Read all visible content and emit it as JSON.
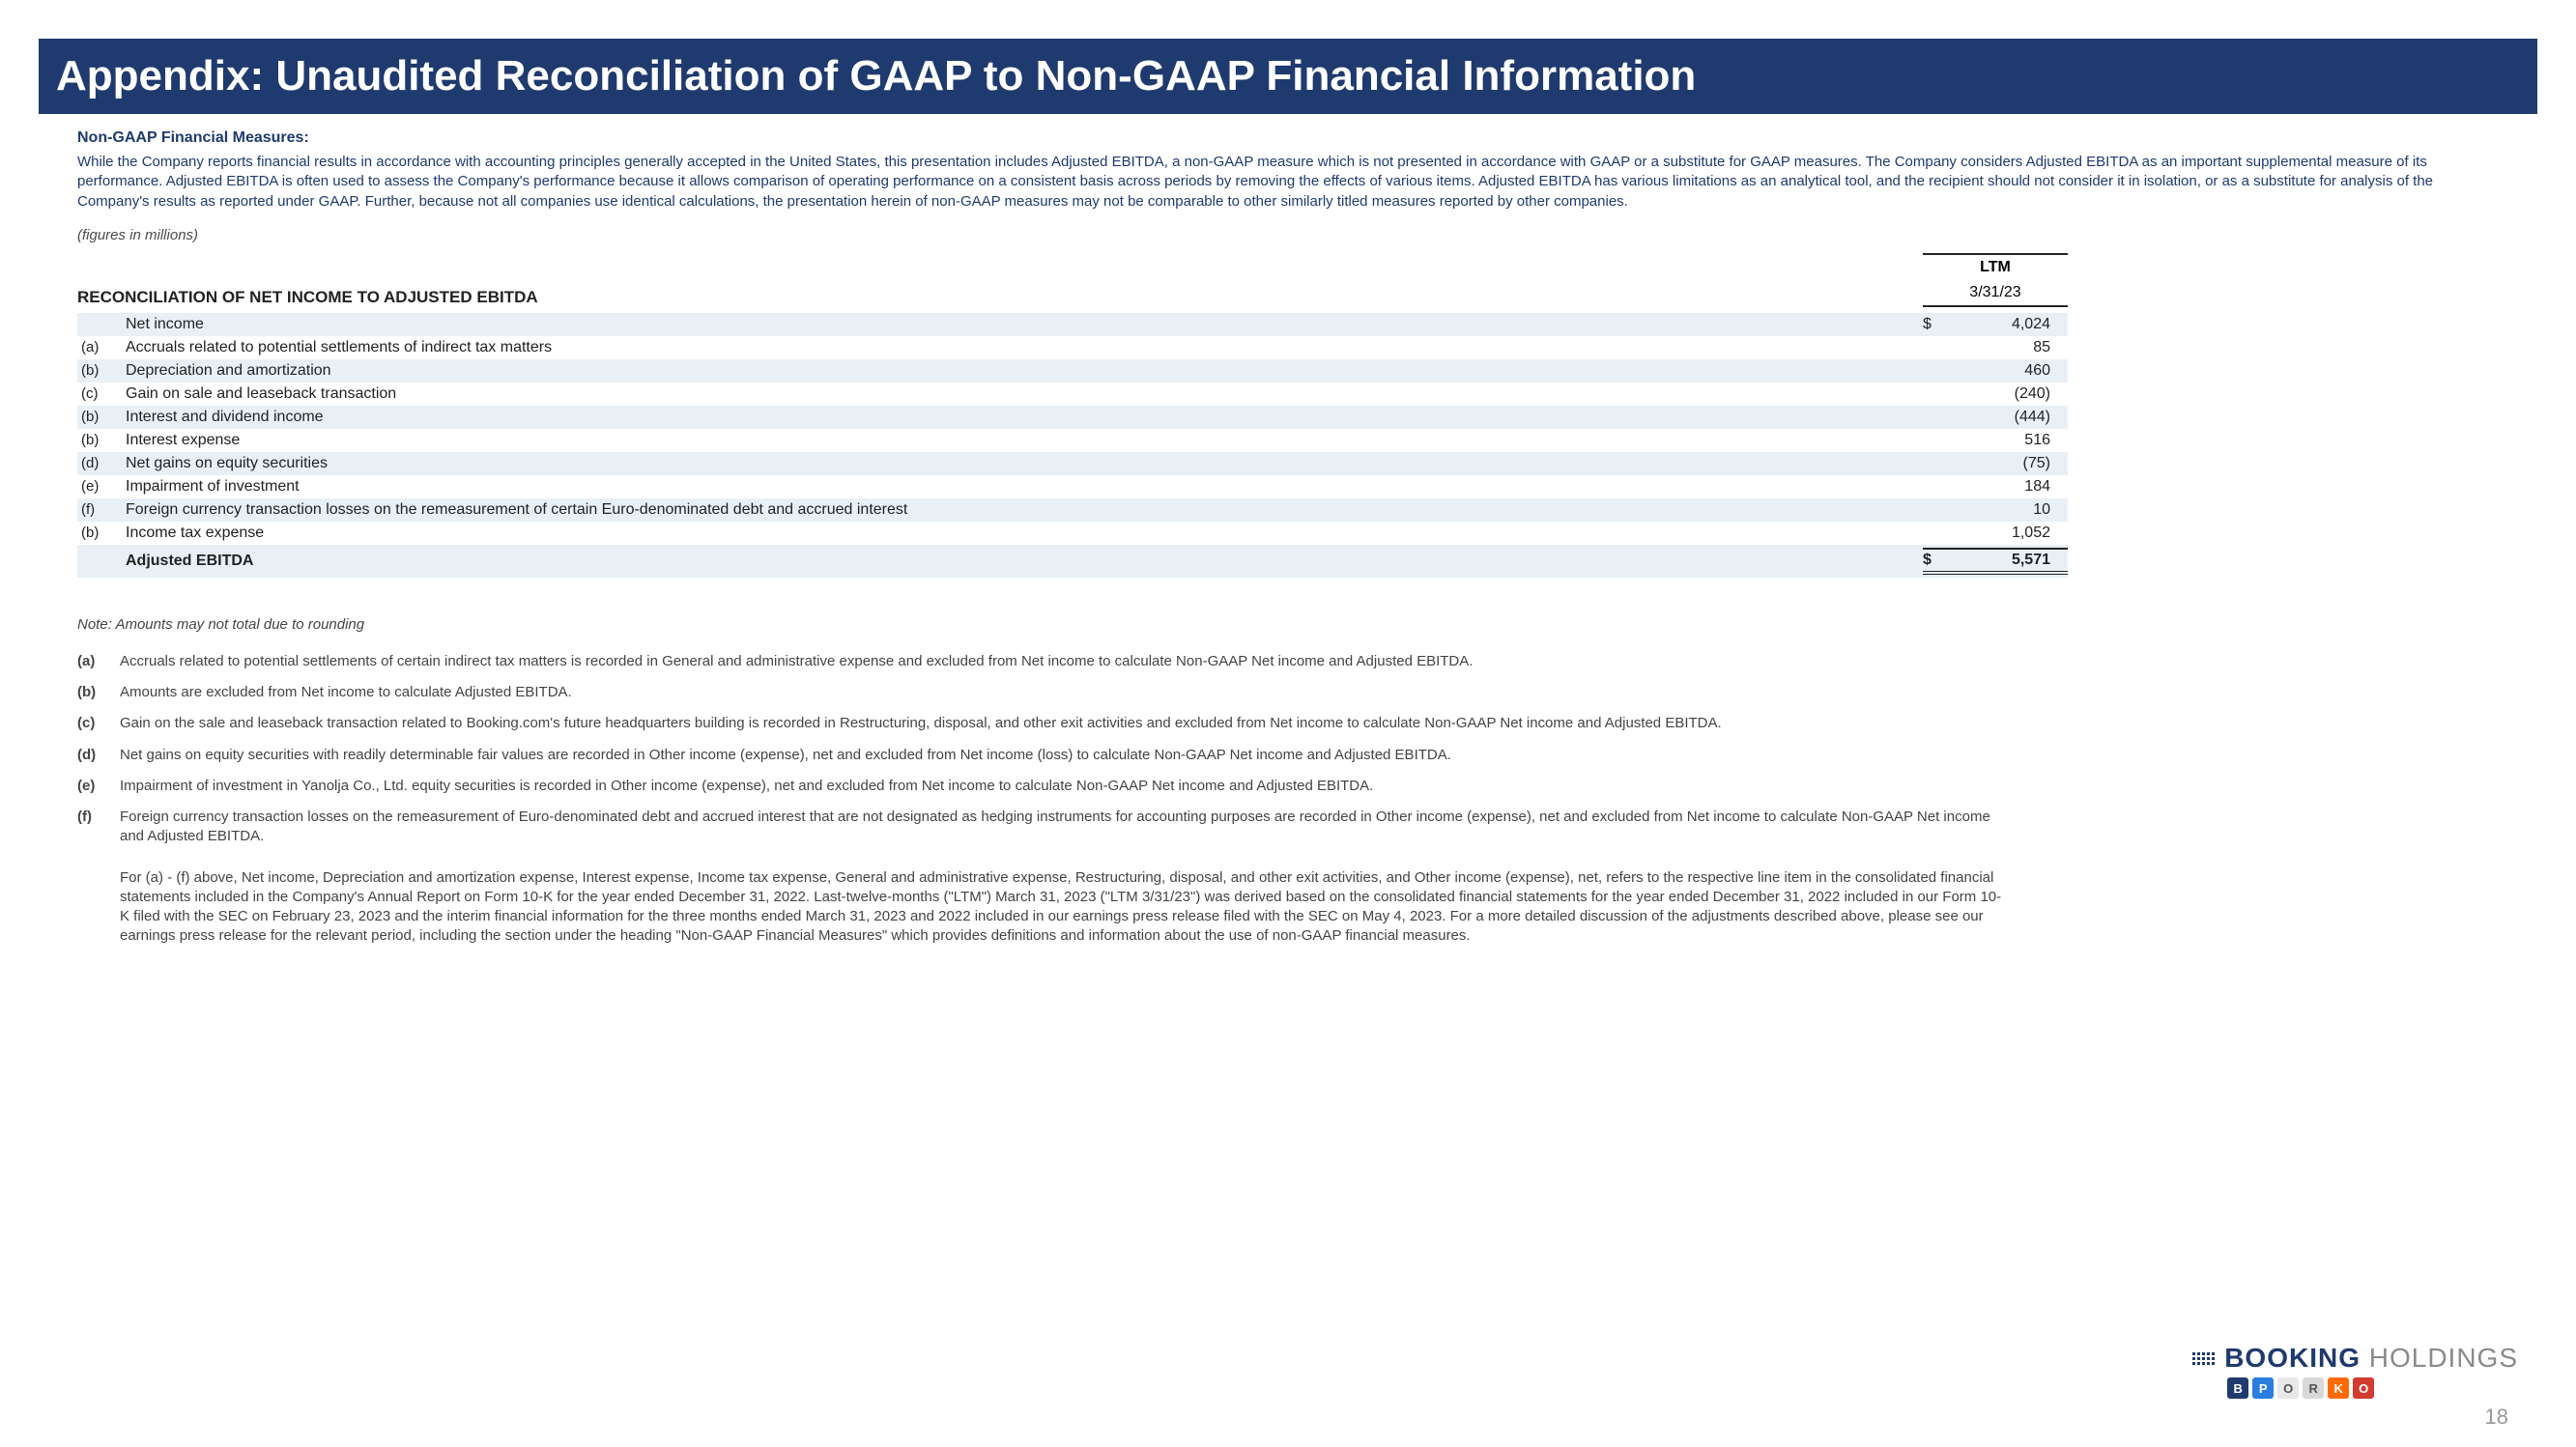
{
  "title": "Appendix: Unaudited Reconciliation of GAAP to Non-GAAP Financial Information",
  "subheading": "Non-GAAP Financial Measures:",
  "paragraph": "While the Company reports financial results in accordance with accounting principles generally accepted in the United States, this presentation includes Adjusted EBITDA, a non-GAAP measure which is not presented in accordance with GAAP or a substitute for GAAP measures. The Company considers Adjusted EBITDA as an important supplemental measure of its performance. Adjusted EBITDA is often used to assess the Company's performance because it allows comparison of operating performance on a consistent basis across periods by removing the effects of various items. Adjusted EBITDA has various limitations as an analytical tool, and the recipient should not consider it in isolation, or as a substitute for analysis of the Company's results as reported under GAAP. Further, because not all companies use identical calculations, the presentation herein of non-GAAP measures may not be comparable to other similarly titled measures reported by other companies.",
  "figures_note": "(figures in millions)",
  "recon": {
    "title": "RECONCILIATION OF NET INCOME TO ADJUSTED EBITDA",
    "period_heading": "LTM",
    "period_date": "3/31/23",
    "currency": "$",
    "rows": [
      {
        "ref": "",
        "label": "Net income",
        "value": "4,024",
        "shade": true,
        "showCurrency": true
      },
      {
        "ref": "(a)",
        "label": "Accruals related to potential settlements of indirect tax matters",
        "value": "85",
        "shade": false
      },
      {
        "ref": "(b)",
        "label": "Depreciation and amortization",
        "value": "460",
        "shade": true
      },
      {
        "ref": "(c)",
        "label": "Gain on sale and leaseback transaction",
        "value": "(240)",
        "shade": false
      },
      {
        "ref": "(b)",
        "label": "Interest and dividend income",
        "value": "(444)",
        "shade": true
      },
      {
        "ref": "(b)",
        "label": "Interest expense",
        "value": "516",
        "shade": false
      },
      {
        "ref": "(d)",
        "label": "Net gains on equity securities",
        "value": "(75)",
        "shade": true
      },
      {
        "ref": "(e)",
        "label": "Impairment of investment",
        "value": "184",
        "shade": false
      },
      {
        "ref": "(f)",
        "label": "Foreign currency transaction losses on the remeasurement of certain Euro-denominated debt and accrued interest",
        "value": "10",
        "shade": true
      },
      {
        "ref": "(b)",
        "label": "Income tax expense",
        "value": "1,052",
        "shade": false
      }
    ],
    "total": {
      "label": "Adjusted EBITDA",
      "value": "5,571",
      "shade": true,
      "showCurrency": true
    }
  },
  "rounding_note": "Note: Amounts may not total due to rounding",
  "footnotes": [
    {
      "ref": "(a)",
      "text": "Accruals related to potential settlements of certain indirect tax matters is recorded in General and administrative expense and excluded from Net income to calculate Non-GAAP Net income and Adjusted EBITDA."
    },
    {
      "ref": "(b)",
      "text": "Amounts are excluded from Net income to calculate Adjusted EBITDA."
    },
    {
      "ref": "(c)",
      "text": "Gain on the sale and leaseback transaction related to Booking.com's future headquarters building is recorded in Restructuring, disposal, and other exit activities and excluded from Net income to calculate Non-GAAP Net income and Adjusted EBITDA."
    },
    {
      "ref": "(d)",
      "text": "Net gains on equity securities with readily determinable fair values are recorded in Other income (expense), net and excluded from Net income (loss) to calculate Non-GAAP Net income and Adjusted EBITDA."
    },
    {
      "ref": "(e)",
      "text": "Impairment of investment in Yanolja Co., Ltd. equity securities is recorded in Other income (expense), net and excluded from Net income to calculate Non-GAAP Net income and Adjusted EBITDA."
    },
    {
      "ref": "(f)",
      "text": "Foreign currency transaction losses on the remeasurement of Euro-denominated debt and accrued interest that are not designated as hedging instruments for accounting purposes are recorded in Other income (expense), net and excluded from Net income to calculate Non-GAAP Net income and Adjusted EBITDA."
    }
  ],
  "footer_para": "For (a) - (f) above, Net income, Depreciation and amortization expense, Interest expense, Income tax expense, General and administrative expense, Restructuring, disposal, and other exit activities, and Other income (expense), net, refers to the respective line item in the consolidated financial statements included in the Company's Annual Report on Form 10-K for the year ended December 31, 2022. Last-twelve-months (\"LTM\") March 31, 2023 (\"LTM 3/31/23\") was derived based on the consolidated financial statements for the year ended December 31, 2022 included in our Form 10-K filed with the SEC on February 23, 2023 and the interim financial information for the three months ended March 31, 2023 and 2022 included in our earnings press release filed with the SEC on May 4, 2023. For a more detailed discussion of the adjustments described above, please see our earnings press release for the relevant period, including the section under the heading \"Non-GAAP Financial Measures\" which provides definitions and information about the use of non-GAAP financial measures.",
  "logo": {
    "word1": "BOOKING",
    "word2": " HOLDINGS",
    "chips": [
      {
        "letter": "B",
        "bg": "#1f3a6e"
      },
      {
        "letter": "P",
        "bg": "#2a7de1"
      },
      {
        "letter": "O",
        "bg": "#e8e8e8"
      },
      {
        "letter": "R",
        "bg": "#d8d8d8"
      },
      {
        "letter": "K",
        "bg": "#ff6a00"
      },
      {
        "letter": "O",
        "bg": "#d43a2f"
      }
    ]
  },
  "page_number": "18",
  "style": {
    "title_bg": "#1f3a6e",
    "title_fg": "#ffffff",
    "accent_text": "#1f3a6e",
    "row_shade": "#e8f0f6",
    "body_bg": "#ffffff"
  }
}
